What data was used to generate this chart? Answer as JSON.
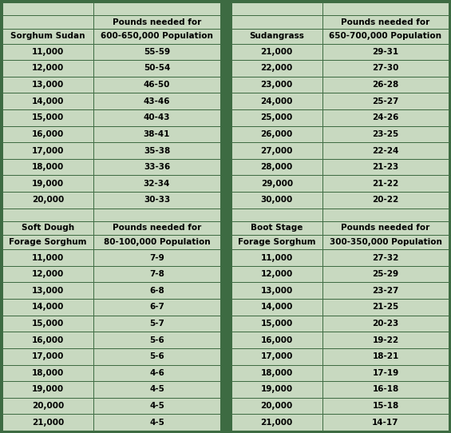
{
  "bg_color": "#3d6b42",
  "cell_bg": "#c8d9c0",
  "text_color": "#000000",
  "border_color": "#3d6b42",
  "section1_row1": [
    "",
    "Pounds needed for",
    "",
    "Pounds needed for"
  ],
  "section1_row2": [
    "Sorghum Sudan",
    "600-650,000 Population",
    "Sudangrass",
    "650-700,000 Population"
  ],
  "section1_data": [
    [
      "11,000",
      "55-59",
      "21,000",
      "29-31"
    ],
    [
      "12,000",
      "50-54",
      "22,000",
      "27-30"
    ],
    [
      "13,000",
      "46-50",
      "23,000",
      "26-28"
    ],
    [
      "14,000",
      "43-46",
      "24,000",
      "25-27"
    ],
    [
      "15,000",
      "40-43",
      "25,000",
      "24-26"
    ],
    [
      "16,000",
      "38-41",
      "26,000",
      "23-25"
    ],
    [
      "17,000",
      "35-38",
      "27,000",
      "22-24"
    ],
    [
      "18,000",
      "33-36",
      "28,000",
      "21-23"
    ],
    [
      "19,000",
      "32-34",
      "29,000",
      "21-22"
    ],
    [
      "20,000",
      "30-33",
      "30,000",
      "20-22"
    ]
  ],
  "section2_row1": [
    "Soft Dough",
    "Pounds needed for",
    "Boot Stage",
    "Pounds needed for"
  ],
  "section2_row2": [
    "Forage Sorghum",
    "80-100,000 Population",
    "Forage Sorghum",
    "300-350,000 Population"
  ],
  "section2_data": [
    [
      "11,000",
      "7-9",
      "11,000",
      "27-32"
    ],
    [
      "12,000",
      "7-8",
      "12,000",
      "25-29"
    ],
    [
      "13,000",
      "6-8",
      "13,000",
      "23-27"
    ],
    [
      "14,000",
      "6-7",
      "14,000",
      "21-25"
    ],
    [
      "15,000",
      "5-7",
      "15,000",
      "20-23"
    ],
    [
      "16,000",
      "5-6",
      "16,000",
      "19-22"
    ],
    [
      "17,000",
      "5-6",
      "17,000",
      "18-21"
    ],
    [
      "18,000",
      "4-6",
      "18,000",
      "17-19"
    ],
    [
      "19,000",
      "4-5",
      "19,000",
      "16-18"
    ],
    [
      "20,000",
      "4-5",
      "20,000",
      "15-18"
    ],
    [
      "21,000",
      "4-5",
      "21,000",
      "14-17"
    ]
  ]
}
